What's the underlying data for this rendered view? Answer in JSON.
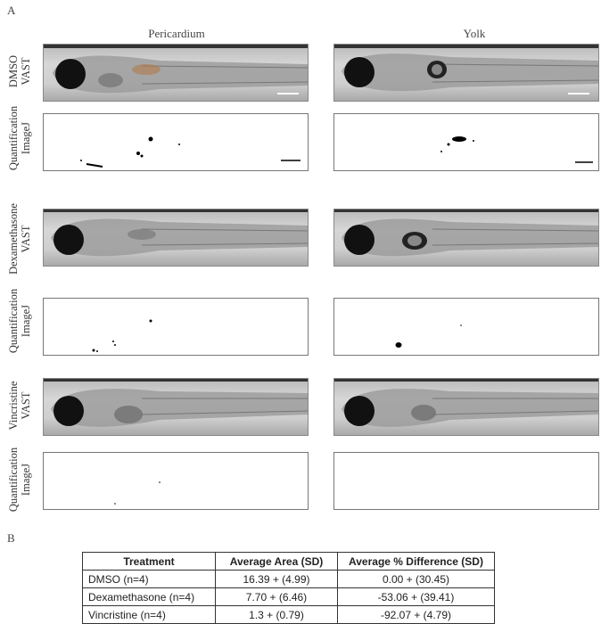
{
  "figure": {
    "panel_a_label": "A",
    "panel_b_label": "B",
    "columns": [
      "Pericardium",
      "Yolk"
    ],
    "rows": [
      {
        "type": "vast",
        "label_line1": "DMSO",
        "label_line2": "VAST"
      },
      {
        "type": "quant",
        "label_line1": "Quantification",
        "label_line2": "ImageJ"
      },
      {
        "type": "vast",
        "label_line1": "Dexamethasone",
        "label_line2": "VAST"
      },
      {
        "type": "quant",
        "label_line1": "Quantification",
        "label_line2": "ImageJ"
      },
      {
        "type": "vast",
        "label_line1": "Vincristine",
        "label_line2": "VAST"
      },
      {
        "type": "quant",
        "label_line1": "Quantification",
        "label_line2": "ImageJ"
      }
    ]
  },
  "table": {
    "headers": [
      "Treatment",
      "Average Area (SD)",
      "Average % Difference (SD)"
    ],
    "rows": [
      [
        "DMSO (n=4)",
        "16.39 + (4.99)",
        "0.00 + (30.45)"
      ],
      [
        "Dexamethasone (n=4)",
        "7.70 + (6.46)",
        "-53.06 + (39.41)"
      ],
      [
        "Vincristine (n=4)",
        "1.3 + (0.79)",
        "-92.07 + (4.79)"
      ]
    ]
  }
}
